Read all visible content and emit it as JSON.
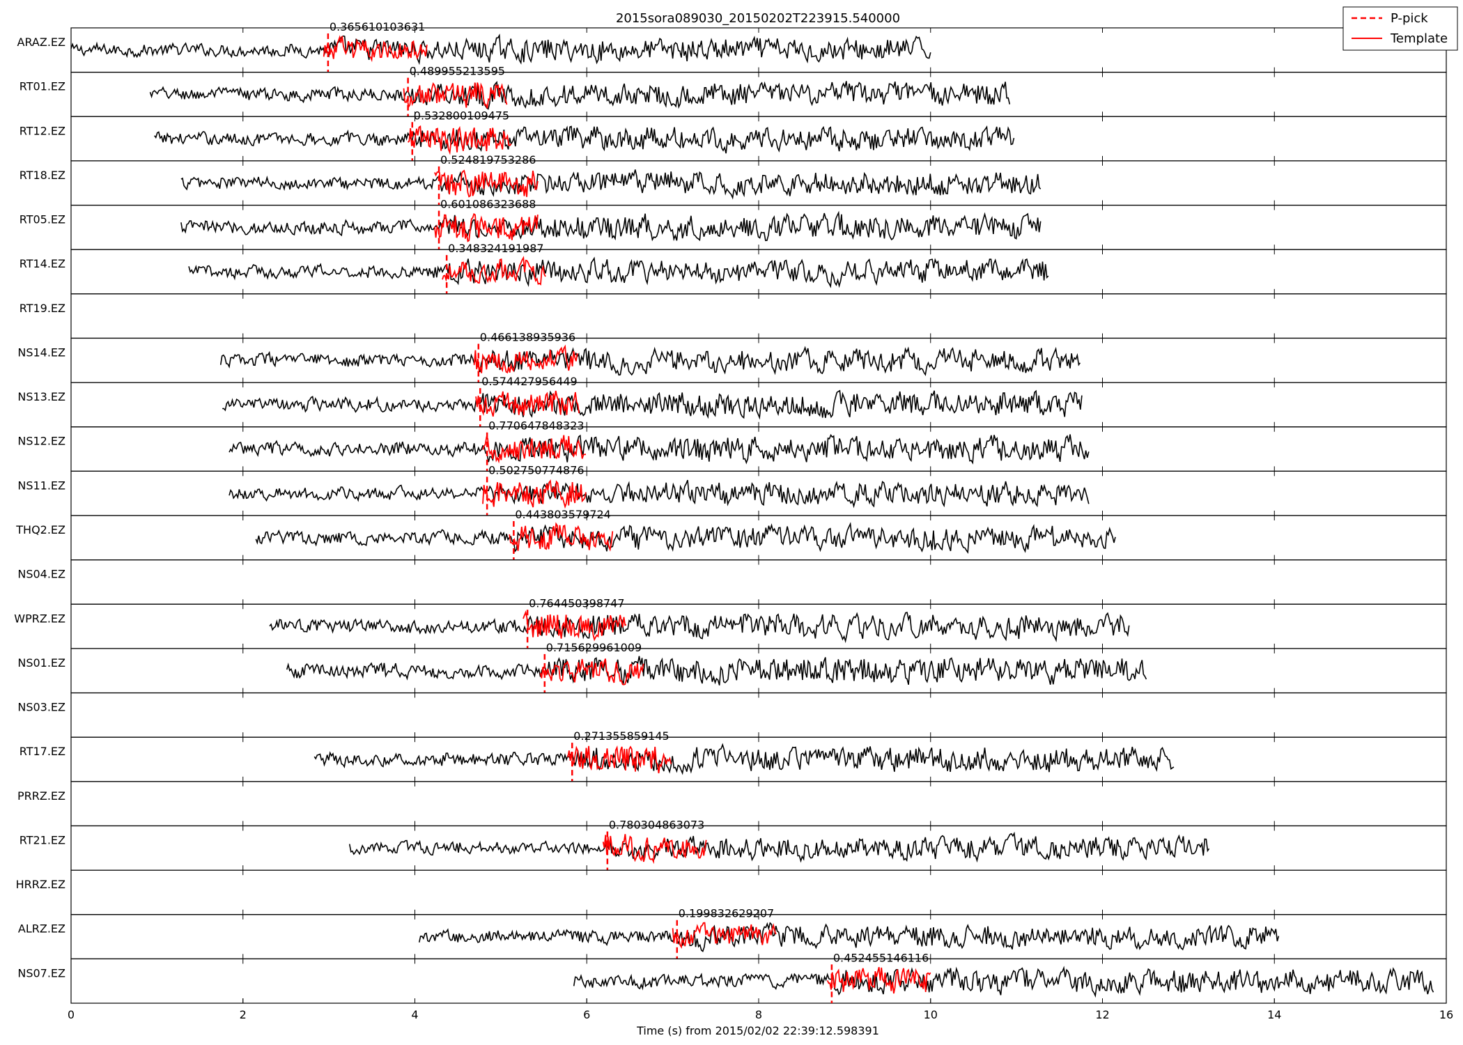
{
  "chart_data": {
    "type": "line",
    "title": "2015sora089030_20150202T223915.540000",
    "xlabel": "Time (s) from 2015/02/02 22:39:12.598391",
    "ylabel": "",
    "xlim": [
      0,
      16
    ],
    "xticks": [
      0,
      2,
      4,
      6,
      8,
      10,
      12,
      14,
      16
    ],
    "grid": false,
    "legend": {
      "placement": "top-right",
      "entries": [
        {
          "label": "P-pick",
          "color": "#ff0000",
          "style": "dashed"
        },
        {
          "label": "Template",
          "color": "#ff0000",
          "style": "solid"
        }
      ]
    },
    "colors": {
      "data": "#000000",
      "template": "#ff0000",
      "pick": "#ff0000"
    },
    "traces": [
      {
        "station": "ARAZ.EZ",
        "start": 0.0,
        "end": 10.0,
        "pick": 2.99,
        "cc": "0.365610103631"
      },
      {
        "station": "RT01.EZ",
        "start": 0.92,
        "end": 10.92,
        "pick": 3.92,
        "cc": "0.489955213595"
      },
      {
        "station": "RT12.EZ",
        "start": 0.97,
        "end": 10.97,
        "pick": 3.97,
        "cc": "0.532800109475"
      },
      {
        "station": "RT18.EZ",
        "start": 1.28,
        "end": 11.28,
        "pick": 4.28,
        "cc": "0.524819753286"
      },
      {
        "station": "RT05.EZ",
        "start": 1.28,
        "end": 11.28,
        "pick": 4.28,
        "cc": "0.601086323688"
      },
      {
        "station": "RT14.EZ",
        "start": 1.37,
        "end": 11.37,
        "pick": 4.37,
        "cc": "0.348324191987"
      },
      {
        "station": "RT19.EZ"
      },
      {
        "station": "NS14.EZ",
        "start": 1.74,
        "end": 11.74,
        "pick": 4.74,
        "cc": "0.466138935936"
      },
      {
        "station": "NS13.EZ",
        "start": 1.76,
        "end": 11.76,
        "pick": 4.76,
        "cc": "0.574427956449"
      },
      {
        "station": "NS12.EZ",
        "start": 1.84,
        "end": 11.84,
        "pick": 4.84,
        "cc": "0.770647848323"
      },
      {
        "station": "NS11.EZ",
        "start": 1.84,
        "end": 11.84,
        "pick": 4.84,
        "cc": "0.502750774876"
      },
      {
        "station": "THQ2.EZ",
        "start": 2.15,
        "end": 12.15,
        "pick": 5.15,
        "cc": "0.443803579724"
      },
      {
        "station": "NS04.EZ"
      },
      {
        "station": "WPRZ.EZ",
        "start": 2.31,
        "end": 12.31,
        "pick": 5.31,
        "cc": "0.764450398747"
      },
      {
        "station": "NS01.EZ",
        "start": 2.51,
        "end": 12.51,
        "pick": 5.51,
        "cc": "0.715629961009"
      },
      {
        "station": "NS03.EZ"
      },
      {
        "station": "RT17.EZ",
        "start": 2.83,
        "end": 12.83,
        "pick": 5.83,
        "cc": "0.271355859145"
      },
      {
        "station": "PRRZ.EZ"
      },
      {
        "station": "RT21.EZ",
        "start": 3.24,
        "end": 13.24,
        "pick": 6.24,
        "cc": "0.780304863073"
      },
      {
        "station": "HRRZ.EZ"
      },
      {
        "station": "ALRZ.EZ",
        "start": 4.05,
        "end": 14.05,
        "pick": 7.05,
        "cc": "0.199832629207"
      },
      {
        "station": "NS07.EZ",
        "start": 5.85,
        "end": 15.85,
        "pick": 8.85,
        "cc": "0.452455146116"
      }
    ]
  }
}
